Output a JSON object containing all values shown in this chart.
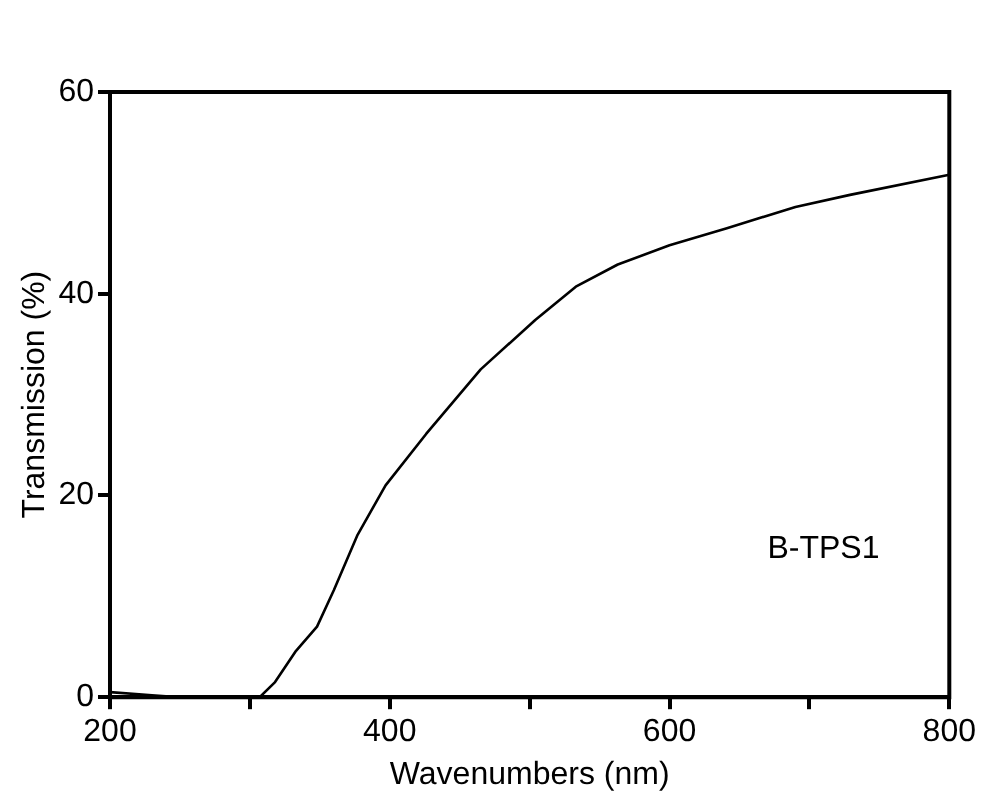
{
  "chart_data": {
    "type": "line",
    "xlabel": "Wavenumbers (nm)",
    "ylabel": "Transmission (%)",
    "x": [
      200,
      230,
      250,
      307,
      318,
      333,
      348,
      360,
      377,
      397,
      426,
      465,
      504,
      533,
      563,
      600,
      641,
      690,
      729,
      800
    ],
    "series": [
      {
        "color": "#000000",
        "values": [
          0.5,
          0.2,
          0,
          0,
          1.5,
          4.6,
          7,
          10.6,
          16.1,
          21,
          26.1,
          32.5,
          37.4,
          40.7,
          42.9,
          44.8,
          46.5,
          48.6,
          49.8,
          51.8
        ]
      }
    ],
    "xlim": [
      200,
      800
    ],
    "xticks": [
      200,
      {
        "value": 300,
        "label": null
      },
      400,
      {
        "value": 500,
        "label": null
      },
      600,
      {
        "value": 700,
        "label": null
      },
      800
    ],
    "ylim": [
      0,
      60
    ],
    "yticks": [
      0,
      20,
      40,
      60
    ],
    "annotations": [
      "B-TPS1"
    ],
    "marker": "none",
    "line_style": "solid"
  }
}
